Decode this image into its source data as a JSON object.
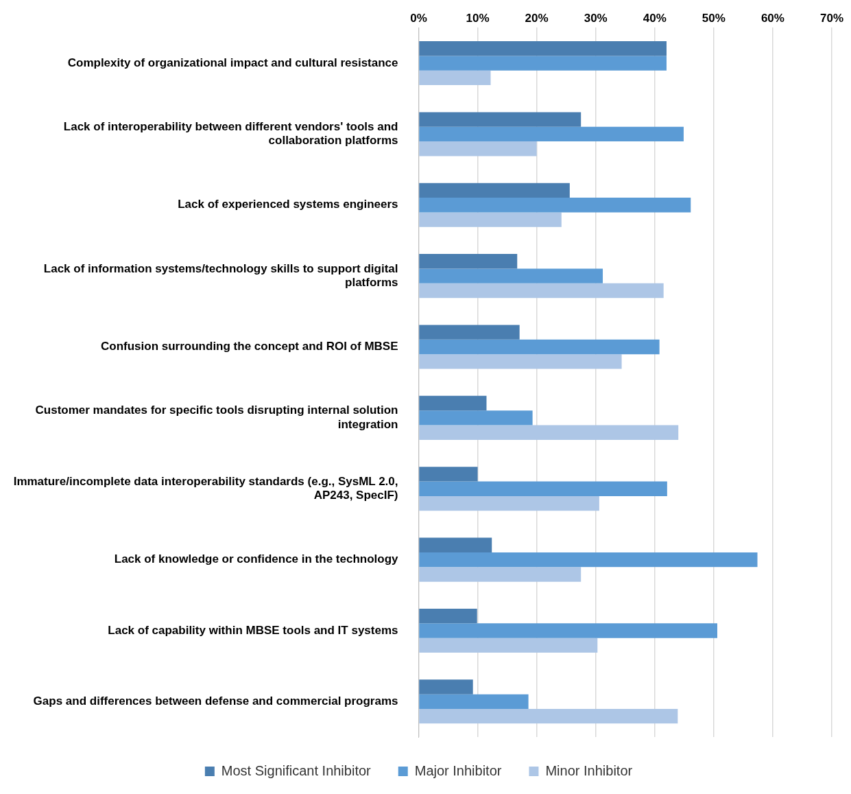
{
  "chart_data": {
    "type": "bar",
    "orientation": "horizontal",
    "categories": [
      "Complexity of organizational impact and cultural resistance",
      "Lack of interoperability between different vendors' tools and collaboration platforms",
      "Lack of experienced systems engineers",
      "Lack of information systems/technology skills to support digital platforms",
      "Confusion surrounding the concept and ROI of MBSE",
      "Customer mandates for specific tools disrupting internal solution integration",
      "Immature/incomplete data interoperability standards (e.g., SysML 2.0, AP243, SpecIF)",
      "Lack of knowledge or confidence in the technology",
      "Lack of capability within MBSE tools and IT systems",
      "Gaps and differences between defense and commercial programs"
    ],
    "series": [
      {
        "name": "Most Significant Inhibitor",
        "color": "#4a7eb0",
        "values": [
          42,
          27.5,
          25.6,
          16.7,
          17.1,
          11.5,
          10,
          12.4,
          9.9,
          9.2
        ]
      },
      {
        "name": "Major Inhibitor",
        "color": "#5b9bd5",
        "values": [
          42,
          44.9,
          46.1,
          31.2,
          40.8,
          19.3,
          42.1,
          57.4,
          50.6,
          18.6
        ]
      },
      {
        "name": "Minor Inhibitor",
        "color": "#adc6e6",
        "values": [
          12.2,
          20,
          24.2,
          41.5,
          34.4,
          44,
          30.6,
          27.5,
          30.3,
          43.9
        ]
      }
    ],
    "xlim": [
      0,
      70
    ],
    "xticks": [
      {
        "value": 0,
        "label": "0%"
      },
      {
        "value": 10,
        "label": "10%"
      },
      {
        "value": 20,
        "label": "20%"
      },
      {
        "value": 30,
        "label": "30%"
      },
      {
        "value": 40,
        "label": "40%"
      },
      {
        "value": 50,
        "label": "50%"
      },
      {
        "value": 60,
        "label": "60%"
      },
      {
        "value": 70,
        "label": "70%"
      }
    ],
    "grid": "x",
    "legend": "bottom"
  }
}
